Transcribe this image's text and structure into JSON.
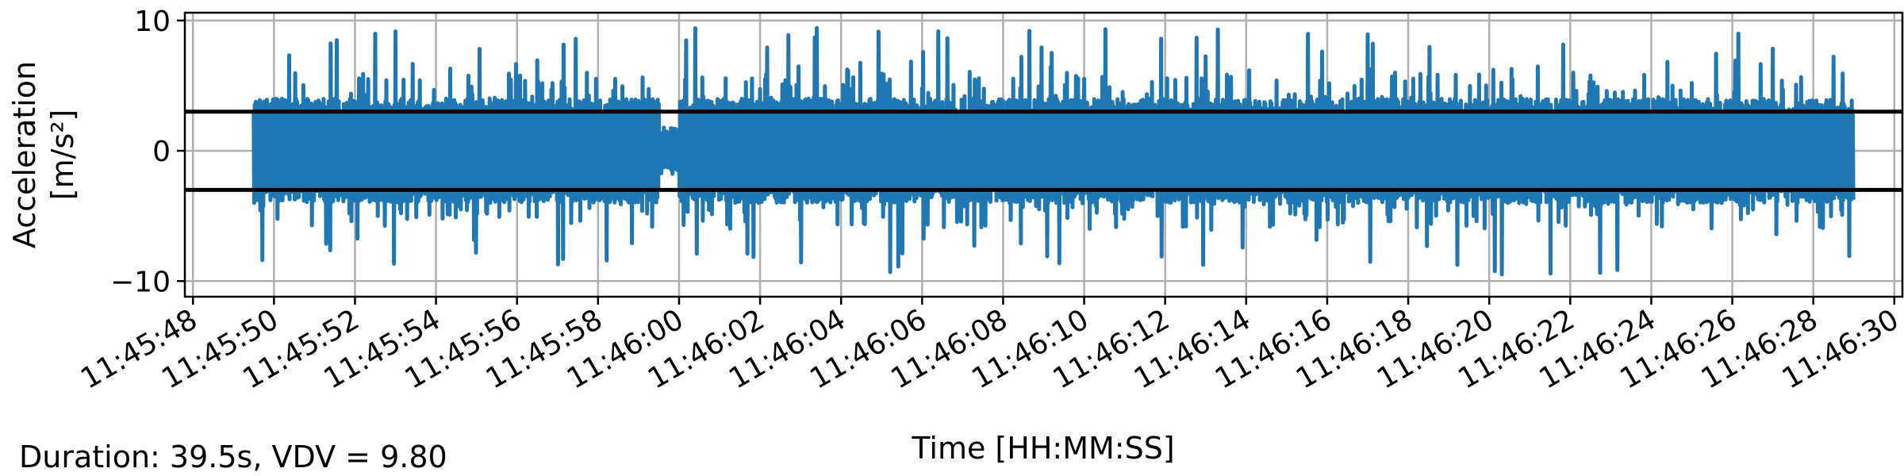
{
  "chart_data": {
    "type": "line",
    "xlabel": "Time [HH:MM:SS]",
    "ylabel_line1": "Acceleration",
    "ylabel_line2": "[m/s²]",
    "ylim": [
      -11.2,
      10.6
    ],
    "yticks": [
      -10,
      0,
      10
    ],
    "ytick_labels": [
      "−10",
      "0",
      "10"
    ],
    "xlim_seconds_past_11_45_48": [
      -0.2,
      42.2
    ],
    "xtick_labels": [
      "11:45:48",
      "11:45:50",
      "11:45:52",
      "11:45:54",
      "11:45:56",
      "11:45:58",
      "11:46:00",
      "11:46:02",
      "11:46:04",
      "11:46:06",
      "11:46:08",
      "11:46:10",
      "11:46:12",
      "11:46:14",
      "11:46:16",
      "11:46:18",
      "11:46:20",
      "11:46:22",
      "11:46:24",
      "11:46:26",
      "11:46:28",
      "11:46:30"
    ],
    "grid": true,
    "series": [
      {
        "color": "#1f77b4",
        "x_start": "11:45:49.5",
        "x_end": "11:46:29.0",
        "gap": [
          "11:45:59.5",
          "11:46:00.0"
        ],
        "peak_positive": 9.8,
        "peak_negative": -10.2
      }
    ],
    "threshold_lines": [
      3.0,
      -3.0
    ],
    "threshold_color": "#000000"
  },
  "footer": {
    "summary": "Duration: 39.5s, VDV = 9.80"
  }
}
